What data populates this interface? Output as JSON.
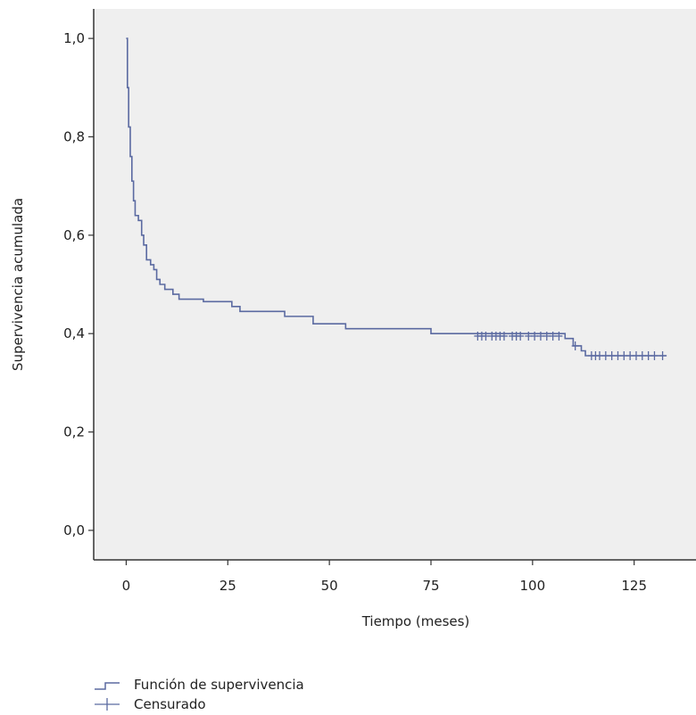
{
  "chart_data": {
    "type": "line",
    "title": "",
    "xlabel": "Tiempo (meses)",
    "ylabel": "Supervivencia acumulada",
    "xlim": [
      -8,
      140
    ],
    "ylim": [
      -0.06,
      1.06
    ],
    "x_ticks": [
      0,
      25,
      50,
      75,
      100,
      125
    ],
    "x_tick_labels": [
      "0",
      "25",
      "50",
      "75",
      "100",
      "125"
    ],
    "y_ticks": [
      0.0,
      0.2,
      0.4,
      0.6,
      0.8,
      1.0
    ],
    "y_tick_labels": [
      "0,0",
      "0,2",
      "0,4",
      "0,6",
      "0,8",
      "1,0"
    ],
    "grid": false,
    "plot_background": "#efefef",
    "line_color": "#5b6aa1",
    "legend_position": "bottom-left",
    "legend": [
      {
        "label": "Función de supervivencia",
        "symbol": "step-line"
      },
      {
        "label": "Censurado",
        "symbol": "plus"
      }
    ],
    "series": [
      {
        "name": "Función de supervivencia",
        "step": true,
        "points": [
          [
            0,
            1.0
          ],
          [
            0.3,
            0.9
          ],
          [
            0.6,
            0.82
          ],
          [
            1.0,
            0.76
          ],
          [
            1.4,
            0.71
          ],
          [
            1.8,
            0.67
          ],
          [
            2.2,
            0.64
          ],
          [
            3.0,
            0.63
          ],
          [
            3.8,
            0.6
          ],
          [
            4.3,
            0.58
          ],
          [
            5.0,
            0.55
          ],
          [
            6.0,
            0.54
          ],
          [
            6.8,
            0.53
          ],
          [
            7.5,
            0.51
          ],
          [
            8.3,
            0.5
          ],
          [
            9.5,
            0.49
          ],
          [
            11.5,
            0.48
          ],
          [
            13.0,
            0.47
          ],
          [
            18.0,
            0.47
          ],
          [
            19.0,
            0.465
          ],
          [
            26.0,
            0.455
          ],
          [
            28.0,
            0.445
          ],
          [
            39.0,
            0.435
          ],
          [
            46.0,
            0.42
          ],
          [
            54.0,
            0.41
          ],
          [
            75.0,
            0.4
          ],
          [
            86.0,
            0.4
          ],
          [
            108.0,
            0.39
          ],
          [
            110.0,
            0.375
          ],
          [
            112.0,
            0.365
          ],
          [
            113.0,
            0.355
          ],
          [
            133.0,
            0.355
          ]
        ]
      },
      {
        "name": "Censurado",
        "censored": [
          [
            86.5,
            0.395
          ],
          [
            87.5,
            0.395
          ],
          [
            88.5,
            0.395
          ],
          [
            90,
            0.395
          ],
          [
            91,
            0.395
          ],
          [
            92,
            0.395
          ],
          [
            93,
            0.395
          ],
          [
            95,
            0.395
          ],
          [
            96,
            0.395
          ],
          [
            97,
            0.395
          ],
          [
            99,
            0.395
          ],
          [
            100.5,
            0.395
          ],
          [
            102,
            0.395
          ],
          [
            103.5,
            0.395
          ],
          [
            105,
            0.395
          ],
          [
            106.5,
            0.395
          ],
          [
            110.5,
            0.375
          ],
          [
            114.5,
            0.355
          ],
          [
            115.5,
            0.355
          ],
          [
            116.5,
            0.355
          ],
          [
            118,
            0.355
          ],
          [
            119.5,
            0.355
          ],
          [
            121,
            0.355
          ],
          [
            122.5,
            0.355
          ],
          [
            124,
            0.355
          ],
          [
            125.5,
            0.355
          ],
          [
            127,
            0.355
          ],
          [
            128.5,
            0.355
          ],
          [
            130,
            0.355
          ],
          [
            132,
            0.355
          ]
        ]
      }
    ]
  }
}
